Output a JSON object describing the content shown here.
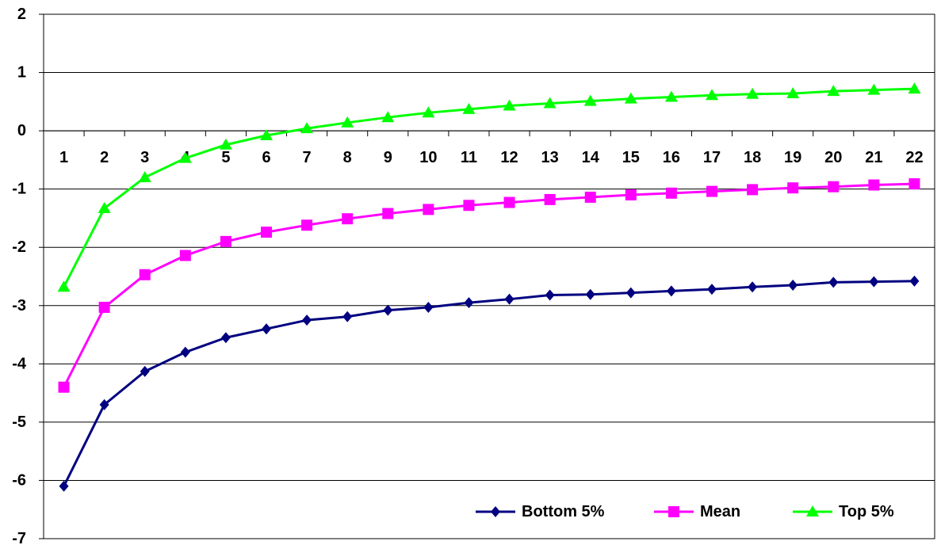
{
  "chart_data": {
    "type": "line",
    "title": "",
    "xlabel": "",
    "ylabel": "",
    "x": [
      1,
      2,
      3,
      4,
      5,
      6,
      7,
      8,
      9,
      10,
      11,
      12,
      13,
      14,
      15,
      16,
      17,
      18,
      19,
      20,
      21,
      22
    ],
    "ylim": [
      -7,
      2
    ],
    "yticks": [
      2,
      1,
      0,
      -1,
      -2,
      -3,
      -4,
      -5,
      -6,
      -7
    ],
    "grid": "horizontal",
    "legend_position": "bottom-right",
    "series": [
      {
        "name": "Bottom 5%",
        "color": "#000080",
        "marker": "diamond",
        "values": [
          -6.1,
          -4.7,
          -4.13,
          -3.8,
          -3.55,
          -3.4,
          -3.25,
          -3.19,
          -3.08,
          -3.03,
          -2.95,
          -2.89,
          -2.82,
          -2.81,
          -2.78,
          -2.75,
          -2.72,
          -2.68,
          -2.65,
          -2.6,
          -2.59,
          -2.58
        ]
      },
      {
        "name": "Mean",
        "color": "#ff00ff",
        "marker": "square",
        "values": [
          -4.4,
          -3.03,
          -2.47,
          -2.14,
          -1.9,
          -1.74,
          -1.62,
          -1.51,
          -1.42,
          -1.35,
          -1.28,
          -1.23,
          -1.18,
          -1.14,
          -1.1,
          -1.07,
          -1.04,
          -1.01,
          -0.98,
          -0.96,
          -0.93,
          -0.91
        ]
      },
      {
        "name": "Top 5%",
        "color": "#00ff00",
        "marker": "triangle",
        "values": [
          -2.68,
          -1.33,
          -0.8,
          -0.47,
          -0.24,
          -0.08,
          0.04,
          0.14,
          0.23,
          0.31,
          0.37,
          0.43,
          0.47,
          0.51,
          0.55,
          0.58,
          0.61,
          0.63,
          0.64,
          0.68,
          0.7,
          0.72
        ]
      }
    ]
  }
}
